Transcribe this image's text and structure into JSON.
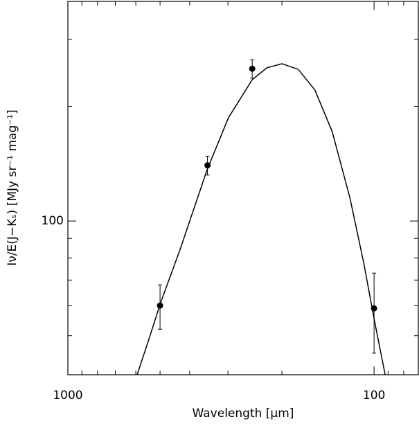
{
  "chart_data": {
    "type": "scatter",
    "xlabel": "Wavelength [μm]",
    "ylabel": "Iν/E(J−Kₛ) [MJy sr⁻¹ mag⁻¹]",
    "xlog": true,
    "ylog": true,
    "xlim": [
      1000,
      71.7
    ],
    "ylim": [
      39.5,
      377
    ],
    "xticks": [
      1000,
      100
    ],
    "yticks": [
      100
    ],
    "xminorticks": [
      900,
      800,
      700,
      600,
      500,
      400,
      300,
      200,
      90,
      80
    ],
    "yminorticks": [
      50,
      60,
      70,
      80,
      90,
      200,
      300
    ],
    "series": [
      {
        "mode": "points",
        "color": "#000000",
        "x": [
          500,
          350,
          250,
          100
        ],
        "values": [
          60,
          140,
          251,
          59
        ],
        "errors": [
          8,
          8,
          14,
          14
        ]
      },
      {
        "mode": "line",
        "color": "#000000",
        "x": [
          594,
          544,
          498,
          430,
          351,
          299,
          250,
          224,
          200,
          177,
          156,
          137,
          120,
          108,
          100,
          92
        ],
        "values": [
          39.5,
          48.9,
          61,
          84.2,
          136.3,
          186.6,
          234.9,
          252.3,
          258.6,
          250.2,
          220.6,
          171.6,
          115.3,
          77.4,
          55.4,
          39.5
        ]
      }
    ]
  }
}
